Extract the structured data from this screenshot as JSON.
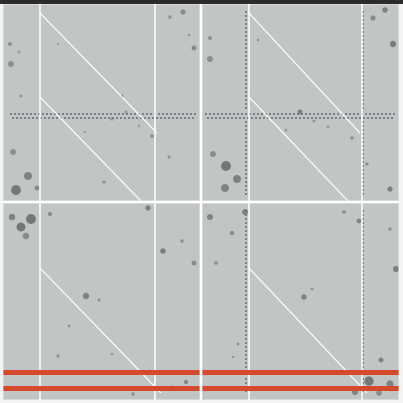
{
  "scene": {
    "tiles": [
      {
        "name": "texture-tile-top-left",
        "has_dotted_horizontal": true,
        "has_dotted_vertical": false,
        "has_red_stripes": false
      },
      {
        "name": "texture-tile-top-right",
        "has_dotted_horizontal": true,
        "has_dotted_vertical": true,
        "has_red_stripes": false
      },
      {
        "name": "texture-tile-bottom-left",
        "has_dotted_horizontal": false,
        "has_dotted_vertical": false,
        "has_red_stripes": true
      },
      {
        "name": "texture-tile-bottom-right",
        "has_dotted_horizontal": false,
        "has_dotted_vertical": true,
        "has_red_stripes": true
      }
    ],
    "colors": {
      "background": "#f3f4f4",
      "tile": "#c2c5c5",
      "line": "#ffffff",
      "stain": "#8e9292",
      "stain_dark": "#767a7b",
      "dot": "#656a6d",
      "red": "#d44a2a",
      "top_rule": "#2b2b2b"
    }
  }
}
